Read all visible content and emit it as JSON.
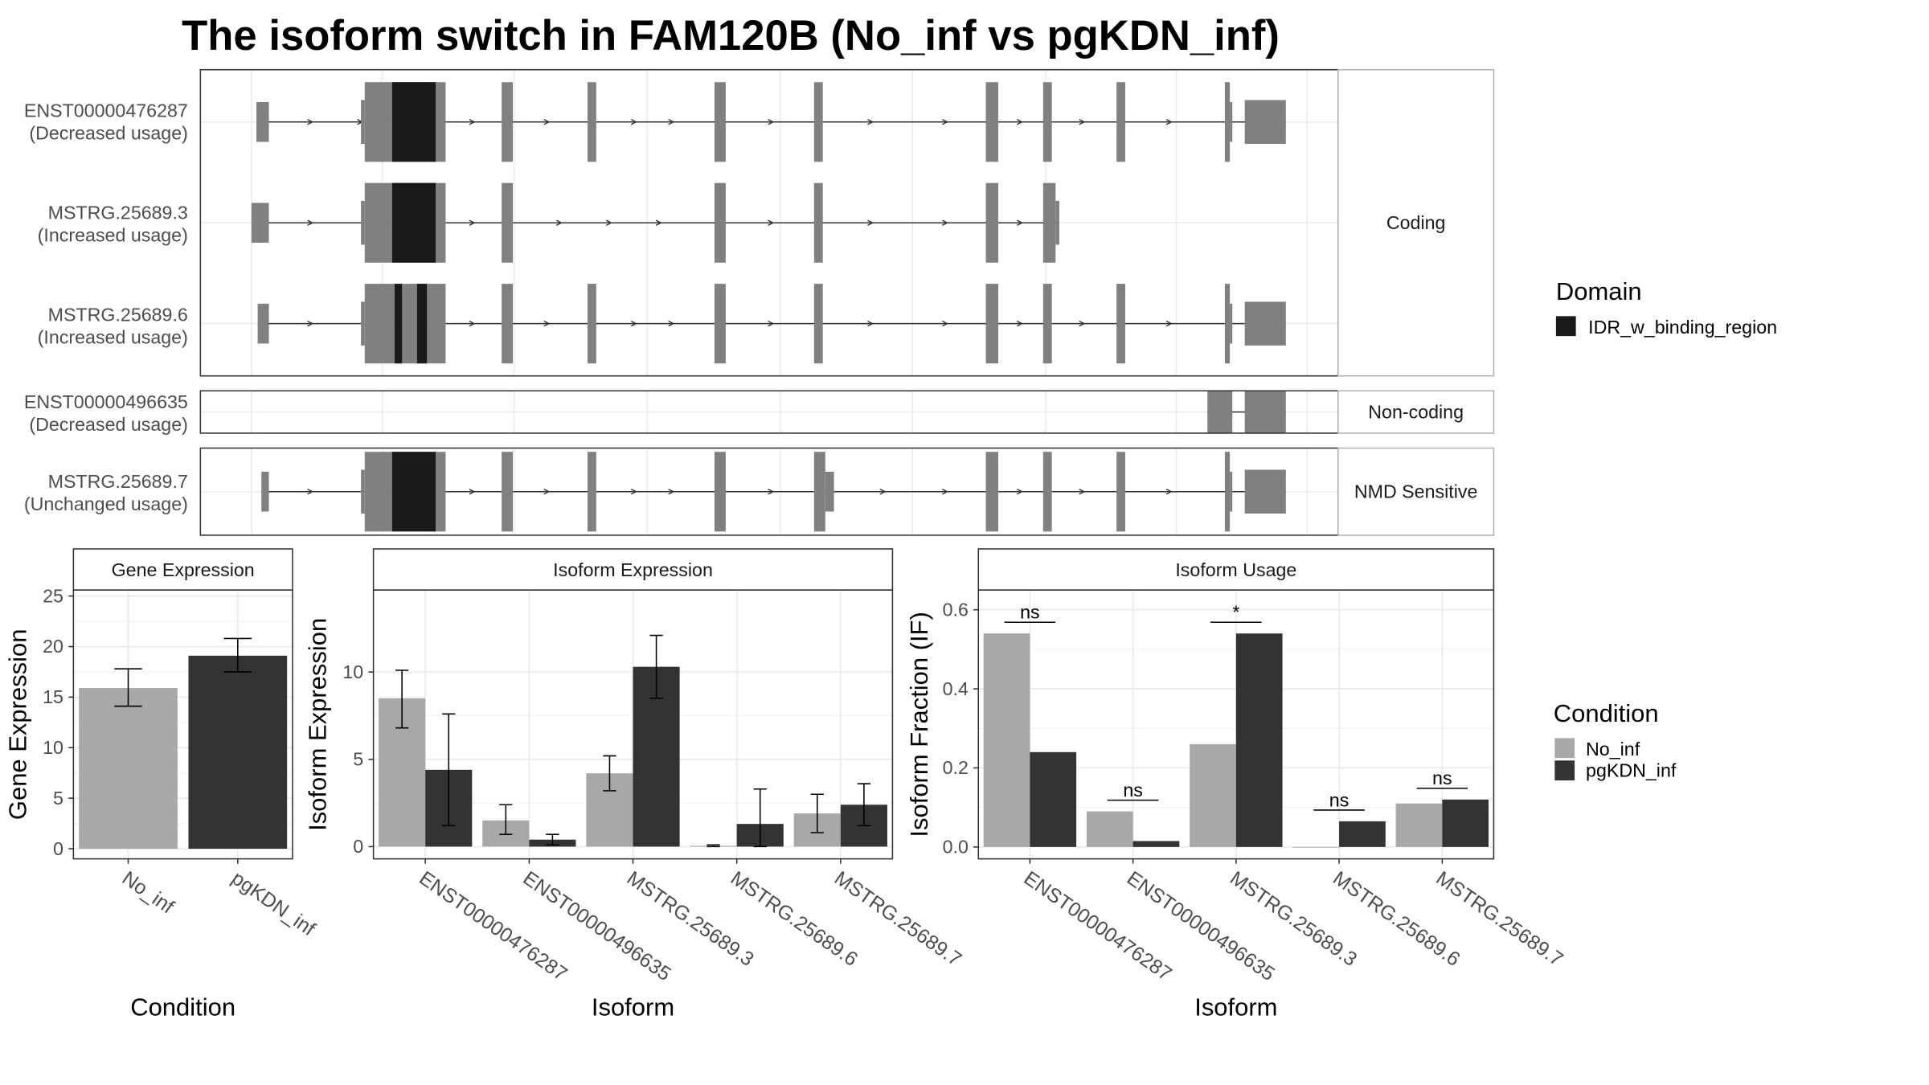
{
  "title": "The isoform switch in FAM120B (No_inf vs pgKDN_inf)",
  "colors": {
    "no_inf": "#a8a8a8",
    "pgkdn_inf": "#333333",
    "exon": "#808080",
    "domain": "#1a1a1a",
    "grid": "#ebebeb",
    "panel_border": "#333333",
    "strip_border": "#b3b3b3",
    "text": "#000000",
    "tick_text": "#4d4d4d"
  },
  "structure": {
    "groups": [
      {
        "label": "Coding",
        "isoforms": [
          {
            "id": "ENST00000476287",
            "usage": "(Decreased usage)",
            "exons": [
              [
                206,
                216,
                0.5
              ],
              [
                290,
                293,
                0.55
              ],
              [
                293,
                315,
                1
              ],
              [
                315,
                350,
                1
              ],
              [
                350,
                358,
                1
              ],
              [
                403,
                412,
                1
              ],
              [
                472,
                479,
                1
              ],
              [
                574,
                583,
                1
              ],
              [
                654,
                661,
                1
              ],
              [
                792,
                802,
                1
              ],
              [
                838,
                845,
                1
              ],
              [
                897,
                904,
                1
              ],
              [
                984,
                988,
                1
              ],
              [
                988,
                990,
                0.5
              ],
              [
                1000,
                1033,
                0.55
              ]
            ],
            "domains": [
              [
                315,
                350
              ]
            ],
            "arrows": [
              250,
              290,
              380,
              440,
              510,
              540,
              620,
              700,
              760,
              820,
              870,
              940
            ]
          },
          {
            "id": "MSTRG.25689.3",
            "usage": "(Increased usage)",
            "exons": [
              [
                202,
                216,
                0.5
              ],
              [
                290,
                293,
                0.55
              ],
              [
                293,
                315,
                1
              ],
              [
                315,
                350,
                1
              ],
              [
                350,
                358,
                1
              ],
              [
                403,
                412,
                1
              ],
              [
                574,
                583,
                1
              ],
              [
                654,
                661,
                1
              ],
              [
                792,
                802,
                1
              ],
              [
                838,
                848,
                1
              ],
              [
                848,
                851,
                0.55
              ]
            ],
            "domains": [
              [
                315,
                350
              ]
            ],
            "arrows": [
              250,
              380,
              450,
              490,
              530,
              620,
              700,
              760,
              820
            ]
          },
          {
            "id": "MSTRG.25689.6",
            "usage": "(Increased usage)",
            "exons": [
              [
                207,
                216,
                0.5
              ],
              [
                290,
                293,
                0.55
              ],
              [
                293,
                317,
                1
              ],
              [
                317,
                323,
                1
              ],
              [
                323,
                335,
                1
              ],
              [
                335,
                343,
                1
              ],
              [
                343,
                358,
                1
              ],
              [
                403,
                412,
                1
              ],
              [
                472,
                479,
                1
              ],
              [
                574,
                583,
                1
              ],
              [
                654,
                661,
                1
              ],
              [
                792,
                802,
                1
              ],
              [
                838,
                845,
                1
              ],
              [
                897,
                904,
                1
              ],
              [
                984,
                988,
                1
              ],
              [
                988,
                990,
                0.5
              ],
              [
                1000,
                1033,
                0.55
              ]
            ],
            "domains": [
              [
                317,
                323
              ],
              [
                335,
                343
              ]
            ],
            "arrows": [
              250,
              380,
              440,
              510,
              540,
              620,
              700,
              760,
              820,
              870,
              940
            ]
          }
        ]
      },
      {
        "label": "Non-coding",
        "isoforms": [
          {
            "id": "ENST00000496635",
            "usage": "(Decreased usage)",
            "exons": [
              [
                970,
                990,
                1
              ],
              [
                1000,
                1033,
                1
              ]
            ],
            "domains": [],
            "arrows": []
          }
        ]
      },
      {
        "label": "NMD Sensitive",
        "isoforms": [
          {
            "id": "MSTRG.25689.7",
            "usage": "(Unchanged usage)",
            "exons": [
              [
                210,
                216,
                0.5
              ],
              [
                290,
                293,
                0.55
              ],
              [
                293,
                315,
                1
              ],
              [
                315,
                350,
                1
              ],
              [
                350,
                358,
                1
              ],
              [
                403,
                412,
                1
              ],
              [
                472,
                479,
                1
              ],
              [
                574,
                583,
                1
              ],
              [
                654,
                663,
                1
              ],
              [
                663,
                670,
                0.5
              ],
              [
                792,
                802,
                1
              ],
              [
                838,
                845,
                1
              ],
              [
                897,
                904,
                1
              ],
              [
                984,
                988,
                1
              ],
              [
                988,
                990,
                0.5
              ],
              [
                1000,
                1033,
                0.55
              ]
            ],
            "domains": [
              [
                315,
                350
              ]
            ],
            "arrows": [
              250,
              380,
              440,
              510,
              540,
              620,
              710,
              760,
              820,
              870,
              940
            ]
          }
        ]
      }
    ]
  },
  "legend_domain": {
    "title": "Domain",
    "item": "IDR_w_binding_region"
  },
  "legend_condition": {
    "title": "Condition",
    "items": [
      "No_inf",
      "pgKDN_inf"
    ]
  },
  "chart_data": [
    {
      "type": "bar",
      "title": "Gene Expression",
      "xlabel": "Condition",
      "ylabel": "Gene Expression",
      "categories": [
        "No_inf",
        "pgKDN_inf"
      ],
      "values": [
        15.9,
        19.1
      ],
      "errors": [
        [
          14.1,
          17.8
        ],
        [
          17.5,
          20.8
        ]
      ],
      "ylim": [
        -1.0,
        25.6
      ],
      "yticks": [
        0,
        5,
        10,
        15,
        20,
        25
      ],
      "grid": true
    },
    {
      "type": "bar",
      "title": "Isoform Expression",
      "xlabel": "Isoform",
      "ylabel": "Isoform Expression",
      "categories": [
        "ENST00000476287",
        "ENST00000496635",
        "MSTRG.25689.3",
        "MSTRG.25689.6",
        "MSTRG.25689.7"
      ],
      "series": [
        {
          "name": "No_inf",
          "values": [
            8.5,
            1.5,
            4.2,
            0.05,
            1.9
          ],
          "errors": [
            [
              6.8,
              10.1
            ],
            [
              0.7,
              2.4
            ],
            [
              3.2,
              5.2
            ],
            [
              0.0,
              0.1
            ],
            [
              0.8,
              3.0
            ]
          ]
        },
        {
          "name": "pgKDN_inf",
          "values": [
            4.4,
            0.4,
            10.3,
            1.3,
            2.4
          ],
          "errors": [
            [
              1.2,
              7.6
            ],
            [
              0.1,
              0.7
            ],
            [
              8.5,
              12.1
            ],
            [
              0.0,
              3.3
            ],
            [
              1.2,
              3.6
            ]
          ]
        }
      ],
      "ylim": [
        -0.7,
        14.7
      ],
      "yticks": [
        0,
        5,
        10
      ],
      "grid": true
    },
    {
      "type": "bar",
      "title": "Isoform Usage",
      "xlabel": "Isoform",
      "ylabel": "Isoform Fraction (IF)",
      "categories": [
        "ENST00000476287",
        "ENST00000496635",
        "MSTRG.25689.3",
        "MSTRG.25689.6",
        "MSTRG.25689.7"
      ],
      "series": [
        {
          "name": "No_inf",
          "values": [
            0.54,
            0.09,
            0.26,
            0.0,
            0.11
          ]
        },
        {
          "name": "pgKDN_inf",
          "values": [
            0.24,
            0.015,
            0.54,
            0.065,
            0.12
          ]
        }
      ],
      "significance": [
        "ns",
        "ns",
        "*",
        "ns",
        "ns"
      ],
      "ylim": [
        -0.03,
        0.65
      ],
      "yticks": [
        0.0,
        0.2,
        0.4,
        0.6
      ],
      "yticklabels": [
        "0.0",
        "0.2",
        "0.4",
        "0.6"
      ],
      "grid": true
    }
  ]
}
